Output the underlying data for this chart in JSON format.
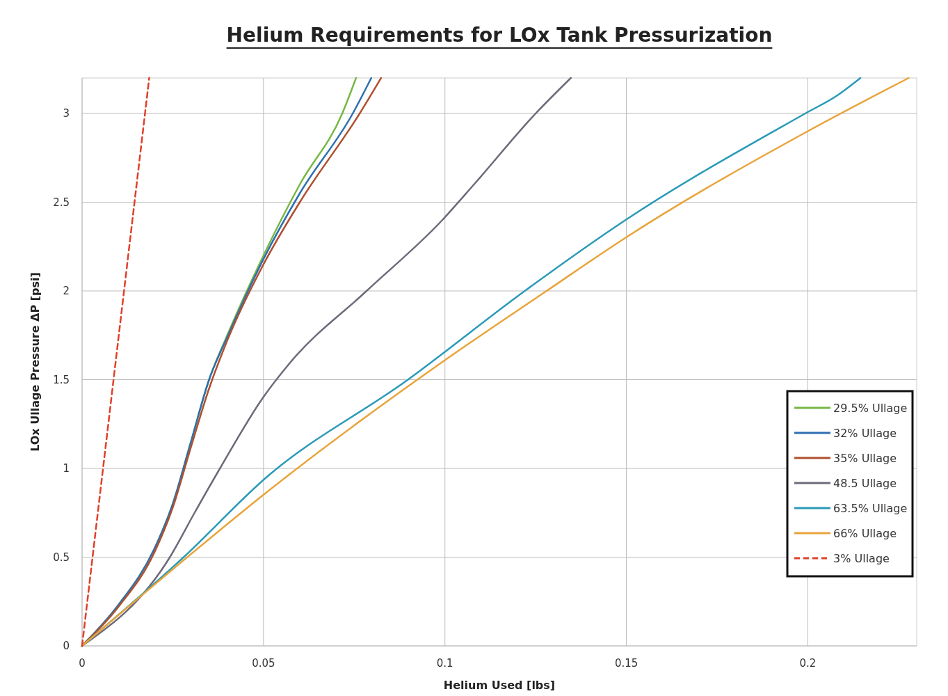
{
  "chart_data": {
    "type": "line",
    "title": "Helium Requirements for LOx Tank Pressurization",
    "xlabel": "Helium  Used [lbs]",
    "ylabel": "LOx Ullage Pressure ΔP [psi]",
    "xlim": [
      0,
      0.23
    ],
    "ylim": [
      0,
      3.2
    ],
    "xticks": [
      0,
      0.05,
      0.1,
      0.15,
      0.2
    ],
    "yticks": [
      0,
      0.5,
      1,
      1.5,
      2,
      2.5,
      3
    ],
    "grid": true,
    "legend": "bottom right",
    "marker": "none",
    "line_style": "solid",
    "series": [
      {
        "name": "29.5% Ullage",
        "color": "#77b843",
        "x": [
          0,
          0.01,
          0.02,
          0.025,
          0.03,
          0.035,
          0.04,
          0.05,
          0.06,
          0.0717,
          0.0755
        ],
        "values": [
          0,
          0.23,
          0.55,
          0.8,
          1.15,
          1.5,
          1.75,
          2.2,
          2.6,
          3.0,
          3.2
        ]
      },
      {
        "name": "32% Ullage",
        "color": "#2f6fb0",
        "x": [
          0,
          0.01,
          0.02,
          0.025,
          0.03,
          0.035,
          0.04,
          0.05,
          0.06,
          0.0746,
          0.0797
        ],
        "values": [
          0,
          0.23,
          0.55,
          0.8,
          1.15,
          1.5,
          1.74,
          2.18,
          2.55,
          3.0,
          3.2
        ]
      },
      {
        "name": "35% Ullage",
        "color": "#b0502e",
        "x": [
          0,
          0.01,
          0.02,
          0.025,
          0.03,
          0.035,
          0.04,
          0.05,
          0.06,
          0.0765,
          0.0824
        ],
        "values": [
          0,
          0.22,
          0.53,
          0.78,
          1.12,
          1.45,
          1.72,
          2.15,
          2.5,
          3.0,
          3.2
        ]
      },
      {
        "name": "48.5 Ullage",
        "color": "#6e6a7a",
        "x": [
          0,
          0.0242,
          0.031,
          0.038,
          0.0499,
          0.0575,
          0.0784,
          0.0993,
          0.108,
          0.125,
          0.1347
        ],
        "values": [
          0,
          0.5,
          0.75,
          1.0,
          1.4,
          1.6,
          2.0,
          2.4,
          2.6,
          3.0,
          3.2
        ]
      },
      {
        "name": "63.5% Ullage",
        "color": "#2a9ab8",
        "x": [
          0,
          0.028,
          0.0508,
          0.0898,
          0.122,
          0.1498,
          0.1993,
          0.208,
          0.2145
        ],
        "values": [
          0,
          0.5,
          0.95,
          1.5,
          2.0,
          2.4,
          3.0,
          3.1,
          3.2
        ]
      },
      {
        "name": "66% Ullage",
        "color": "#e8a43a",
        "x": [
          0,
          0.029,
          0.0499,
          0.0993,
          0.128,
          0.1498,
          0.2,
          0.2278
        ],
        "values": [
          0,
          0.5,
          0.85,
          1.6,
          2.0,
          2.3,
          2.9,
          3.2
        ]
      },
      {
        "name": "3% Ullage",
        "color": "#e0402a",
        "line_style": "dashed",
        "x": [
          0,
          0.0185
        ],
        "values": [
          0,
          3.2
        ]
      }
    ]
  }
}
